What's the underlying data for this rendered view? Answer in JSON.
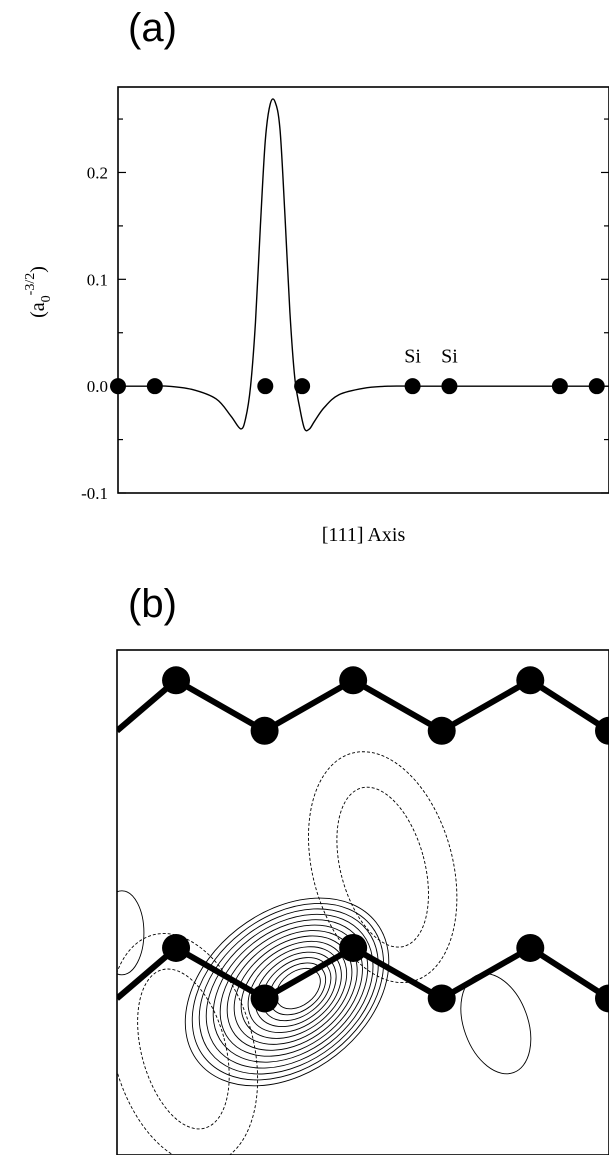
{
  "panel_a": {
    "label": "(a)"
  },
  "panel_b": {
    "label": "(b)"
  },
  "chart_data": [
    {
      "type": "line",
      "panel": "(a)",
      "title": "",
      "xlabel": "[111] Axis",
      "ylabel": "(a0^-3/2)",
      "ylabel_parts": {
        "open": "(a",
        "sub": "0",
        "sup": "-3/2",
        "close": ")"
      },
      "xlim": [
        0,
        1
      ],
      "ylim": [
        -0.1,
        0.28
      ],
      "y_ticks": [
        {
          "value": -0.1,
          "label": "-0.1"
        },
        {
          "value": 0.0,
          "label": "0.0"
        },
        {
          "value": 0.1,
          "label": "0.1"
        },
        {
          "value": 0.2,
          "label": "0.2"
        }
      ],
      "grid": false,
      "series": [
        {
          "x": [
            0.0,
            0.05,
            0.1,
            0.15,
            0.2,
            0.23,
            0.25,
            0.26,
            0.27,
            0.28,
            0.29,
            0.3,
            0.31,
            0.32,
            0.33,
            0.34,
            0.35,
            0.36,
            0.37,
            0.38,
            0.39,
            0.4,
            0.42,
            0.45,
            0.5,
            0.55,
            0.6,
            0.65,
            0.7,
            0.75,
            0.8,
            0.85,
            0.9,
            0.95,
            1.0
          ],
          "y": [
            0.0,
            0.0,
            0.0,
            -0.003,
            -0.012,
            -0.028,
            -0.04,
            -0.03,
            0.0,
            0.06,
            0.15,
            0.23,
            0.264,
            0.266,
            0.24,
            0.16,
            0.07,
            0.008,
            -0.02,
            -0.04,
            -0.04,
            -0.033,
            -0.02,
            -0.008,
            -0.002,
            0.0,
            0.0,
            0.0,
            0.0,
            0.0,
            0.0,
            0.0,
            0.0,
            0.0,
            0.0
          ]
        }
      ],
      "atoms": {
        "x": [
          0.0,
          0.075,
          0.3,
          0.375,
          0.6,
          0.675,
          0.9,
          0.975
        ],
        "y": [
          0,
          0,
          0,
          0,
          0,
          0,
          0,
          0
        ]
      },
      "annotations": [
        {
          "text": "Si",
          "x": 0.6,
          "y": 0.022
        },
        {
          "text": "Si",
          "x": 0.675,
          "y": 0.022
        }
      ]
    },
    {
      "type": "contour",
      "panel": "(b)",
      "title": "",
      "chains": [
        {
          "x": [
            0.0,
            0.12,
            0.3,
            0.48,
            0.66,
            0.84,
            1.0
          ],
          "y": [
            0.84,
            0.94,
            0.84,
            0.94,
            0.84,
            0.94,
            0.84
          ]
        },
        {
          "x": [
            0.0,
            0.12,
            0.3,
            0.48,
            0.66,
            0.84,
            1.0
          ],
          "y": [
            0.31,
            0.41,
            0.31,
            0.41,
            0.31,
            0.41,
            0.31
          ]
        }
      ],
      "atoms": [
        {
          "x": 0.12,
          "y": 0.94
        },
        {
          "x": 0.3,
          "y": 0.84
        },
        {
          "x": 0.48,
          "y": 0.94
        },
        {
          "x": 0.66,
          "y": 0.84
        },
        {
          "x": 0.84,
          "y": 0.94
        },
        {
          "x": 1.0,
          "y": 0.84
        },
        {
          "x": 0.12,
          "y": 0.41
        },
        {
          "x": 0.3,
          "y": 0.31
        },
        {
          "x": 0.48,
          "y": 0.41
        },
        {
          "x": 0.66,
          "y": 0.31
        },
        {
          "x": 0.84,
          "y": 0.41
        },
        {
          "x": 1.0,
          "y": 0.31
        }
      ],
      "positive_lobe": {
        "cx": 0.37,
        "cy": 0.33,
        "levels": 14
      },
      "negative_lobes": [
        {
          "cx": 0.135,
          "cy": 0.21
        },
        {
          "cx": 0.54,
          "cy": 0.57
        }
      ],
      "line_styles": {
        "positive": "solid",
        "negative": "dashed"
      }
    }
  ]
}
